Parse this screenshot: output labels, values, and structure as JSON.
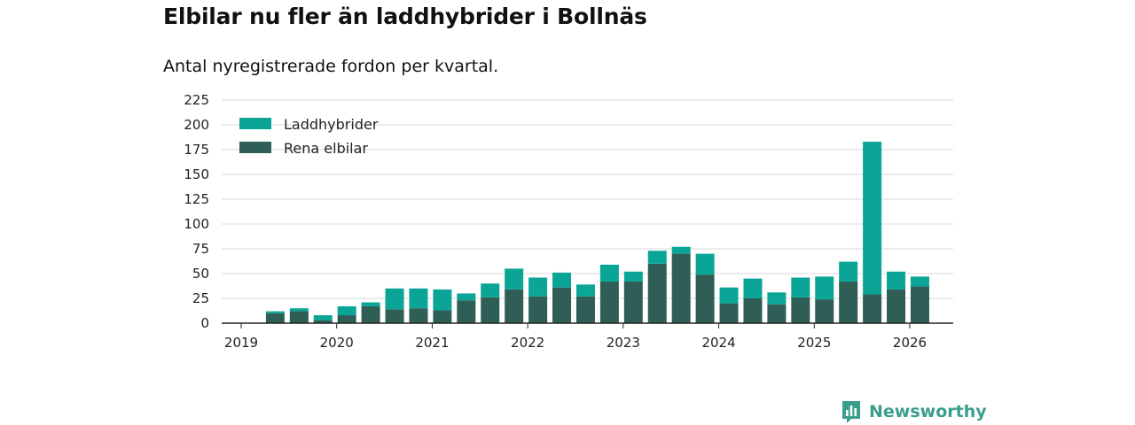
{
  "header": {
    "title": "Elbilar nu fler än laddhybrider i Bollnäs",
    "subtitle": "Antal nyregistrerade fordon per kvartal."
  },
  "brand": {
    "name": "Newsworthy",
    "icon": "newsworthy-logo-icon",
    "color": "#3a9e8c"
  },
  "colors": {
    "laddhybrider": "#0aa597",
    "rena_elbilar": "#2e5e55",
    "grid": "#d9d9d9",
    "axis": "#222222"
  },
  "chart_data": {
    "type": "bar",
    "stacked": true,
    "title": "Elbilar nu fler än laddhybrider i Bollnäs",
    "subtitle": "Antal nyregistrerade fordon per kvartal.",
    "xlabel": "",
    "ylabel": "",
    "ylim": [
      0,
      225
    ],
    "yticks": [
      0,
      25,
      50,
      75,
      100,
      125,
      150,
      175,
      200,
      225
    ],
    "xticks": [
      "2019",
      "2020",
      "2021",
      "2022",
      "2023",
      "2024",
      "2025",
      "2026"
    ],
    "grid": true,
    "legend_position": "top-left",
    "categories": [
      "2019 Q2",
      "2019 Q3",
      "2019 Q4",
      "2020 Q1",
      "2020 Q2",
      "2020 Q3",
      "2020 Q4",
      "2021 Q1",
      "2021 Q2",
      "2021 Q3",
      "2021 Q4",
      "2022 Q1",
      "2022 Q2",
      "2022 Q3",
      "2022 Q4",
      "2023 Q1",
      "2023 Q2",
      "2023 Q3",
      "2023 Q4",
      "2024 Q1",
      "2024 Q2",
      "2024 Q3",
      "2024 Q4",
      "2025 Q1",
      "2025 Q2",
      "2025 Q3",
      "2025 Q4",
      "2026 Q1"
    ],
    "series": [
      {
        "name": "Rena elbilar",
        "color": "#2e5e55",
        "values": [
          10,
          12,
          3,
          8,
          17,
          14,
          15,
          13,
          23,
          26,
          34,
          27,
          36,
          27,
          42,
          42,
          60,
          70,
          49,
          20,
          25,
          19,
          26,
          24,
          42,
          29,
          34,
          37
        ]
      },
      {
        "name": "Laddhybrider",
        "color": "#0aa597",
        "values": [
          2,
          3,
          5,
          9,
          4,
          21,
          20,
          21,
          7,
          14,
          21,
          19,
          15,
          12,
          17,
          10,
          13,
          7,
          21,
          16,
          20,
          12,
          20,
          23,
          20,
          154,
          18,
          10
        ]
      }
    ],
    "legend": [
      "Laddhybrider",
      "Rena elbilar"
    ]
  }
}
